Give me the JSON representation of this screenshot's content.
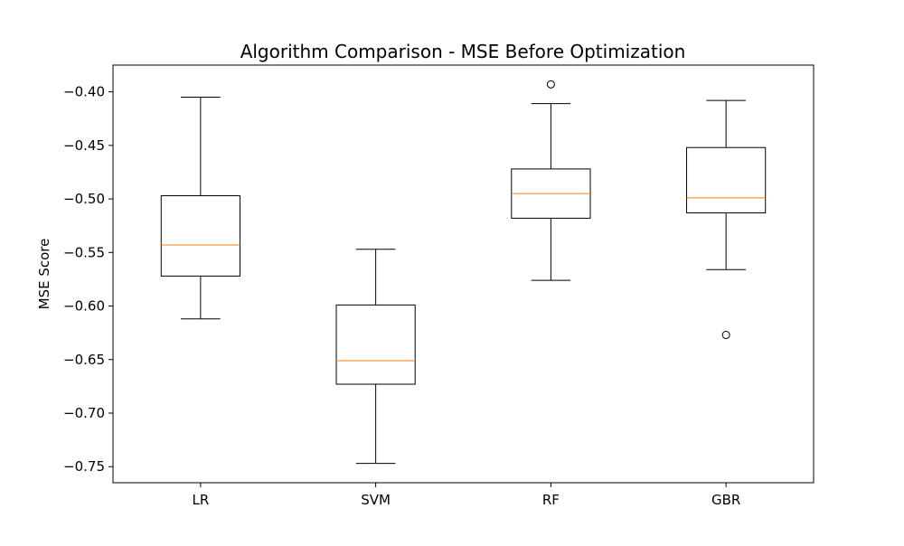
{
  "chart_data": {
    "type": "boxplot",
    "title": "Algorithm Comparison - MSE Before Optimization",
    "xlabel": "",
    "ylabel": "MSE Score",
    "categories": [
      "LR",
      "SVM",
      "RF",
      "GBR"
    ],
    "ylim": [
      -0.765,
      -0.375
    ],
    "yticks": [
      -0.4,
      -0.45,
      -0.5,
      -0.55,
      -0.6,
      -0.65,
      -0.7,
      -0.75
    ],
    "ytick_labels": [
      "−0.40",
      "−0.45",
      "−0.50",
      "−0.55",
      "−0.60",
      "−0.65",
      "−0.70",
      "−0.75"
    ],
    "grid": false,
    "boxes": [
      {
        "whisker_low": -0.612,
        "q1": -0.572,
        "median": -0.543,
        "q3": -0.497,
        "whisker_high": -0.405,
        "outliers": []
      },
      {
        "whisker_low": -0.747,
        "q1": -0.673,
        "median": -0.651,
        "q3": -0.599,
        "whisker_high": -0.547,
        "outliers": []
      },
      {
        "whisker_low": -0.576,
        "q1": -0.518,
        "median": -0.495,
        "q3": -0.472,
        "whisker_high": -0.411,
        "outliers": [
          -0.393
        ]
      },
      {
        "whisker_low": -0.566,
        "q1": -0.513,
        "median": -0.499,
        "q3": -0.452,
        "whisker_high": -0.408,
        "outliers": [
          -0.627
        ]
      }
    ],
    "colors": {
      "box": "#000000",
      "median": "#ff7f0e",
      "outlier": "#000000"
    }
  }
}
